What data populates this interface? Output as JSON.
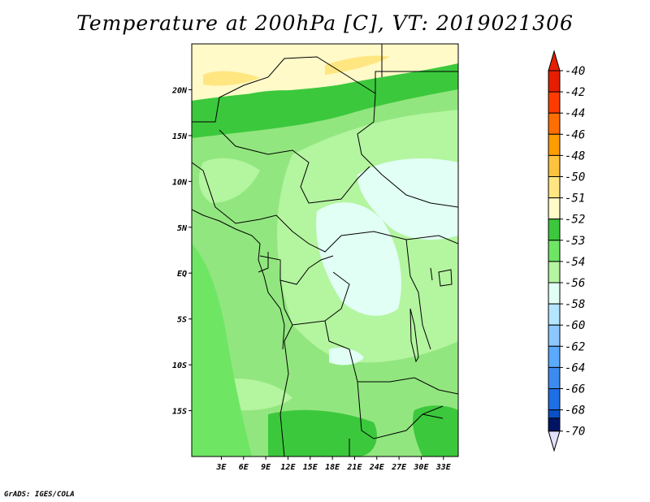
{
  "title": "Temperature at 200hPa [C], VT: 2019021306",
  "footer": "GrADS: IGES/COLA",
  "map": {
    "lon_range": [
      -1,
      35
    ],
    "lat_range": [
      -20,
      25
    ],
    "lon_ticks": [
      {
        "value": 3,
        "label": "3E"
      },
      {
        "value": 6,
        "label": "6E"
      },
      {
        "value": 9,
        "label": "9E"
      },
      {
        "value": 12,
        "label": "12E"
      },
      {
        "value": 15,
        "label": "15E"
      },
      {
        "value": 18,
        "label": "18E"
      },
      {
        "value": 21,
        "label": "21E"
      },
      {
        "value": 24,
        "label": "24E"
      },
      {
        "value": 27,
        "label": "27E"
      },
      {
        "value": 30,
        "label": "30E"
      },
      {
        "value": 33,
        "label": "33E"
      }
    ],
    "lat_ticks": [
      {
        "value": 20,
        "label": "20N"
      },
      {
        "value": 15,
        "label": "15N"
      },
      {
        "value": 10,
        "label": "10N"
      },
      {
        "value": 5,
        "label": "5N"
      },
      {
        "value": 0,
        "label": "EQ"
      },
      {
        "value": -5,
        "label": "5S"
      },
      {
        "value": -10,
        "label": "10S"
      },
      {
        "value": -15,
        "label": "15S"
      }
    ],
    "base_color": "#92e67f"
  },
  "colorbar": {
    "levels": [
      {
        "label": "-40",
        "color": "#e61e00"
      },
      {
        "label": "-42",
        "color": "#ff3b00"
      },
      {
        "label": "-44",
        "color": "#ff6e00"
      },
      {
        "label": "-46",
        "color": "#ff9c00"
      },
      {
        "label": "-48",
        "color": "#ffc23c"
      },
      {
        "label": "-50",
        "color": "#ffe681"
      },
      {
        "label": "-51",
        "color": "#fffac8"
      },
      {
        "label": "-52",
        "color": "#3cc83c"
      },
      {
        "label": "-53",
        "color": "#6ee664"
      },
      {
        "label": "-54",
        "color": "#b4f5a0"
      },
      {
        "label": "-56",
        "color": "#e1fff5"
      },
      {
        "label": "-58",
        "color": "#b4e6ff"
      },
      {
        "label": "-60",
        "color": "#8cc8ff"
      },
      {
        "label": "-62",
        "color": "#5aaaff"
      },
      {
        "label": "-64",
        "color": "#3c8cf0"
      },
      {
        "label": "-66",
        "color": "#1e6ee6"
      },
      {
        "label": "-68",
        "color": "#0a50c8"
      },
      {
        "label": "-70",
        "color": "#003296"
      }
    ],
    "top_arrow_color": "#e61e00",
    "bottom_arrow_color": "#001464",
    "bottom_triangle_color": "#e1e1ff"
  }
}
